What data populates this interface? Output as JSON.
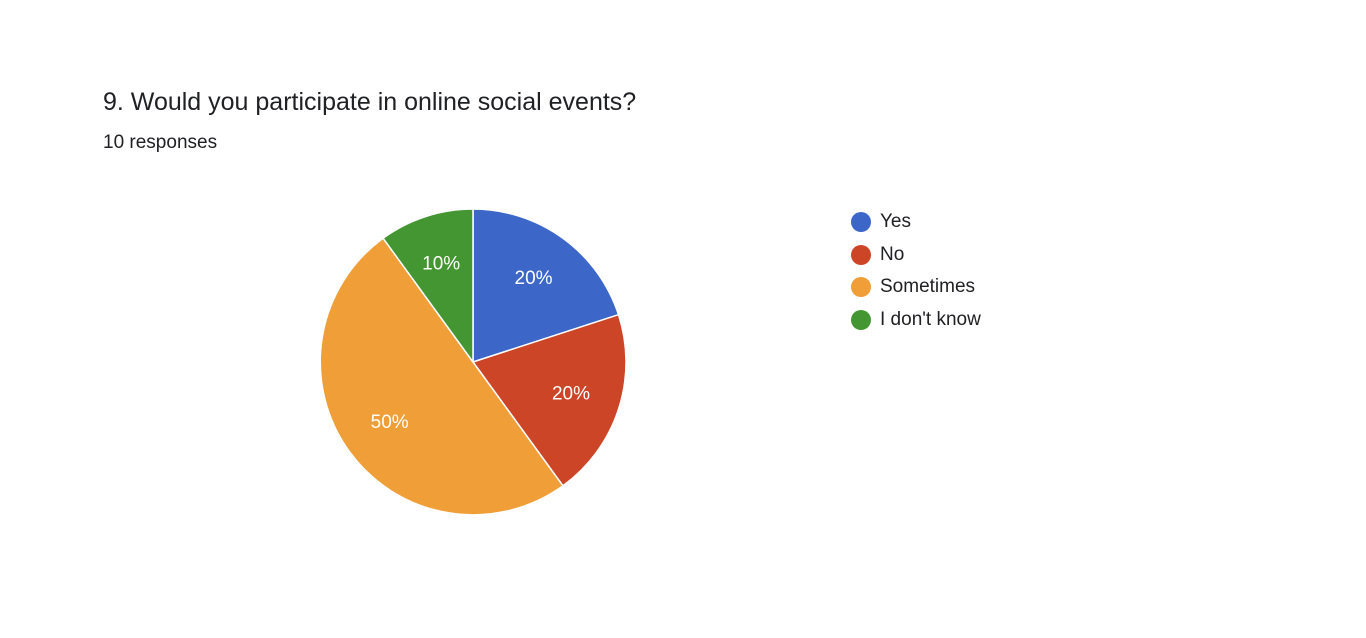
{
  "question": {
    "title": "9. Would you participate in online social events?",
    "response_count": "10 responses"
  },
  "chart_data": {
    "type": "pie",
    "title": "9. Would you participate in online social events?",
    "subtitle": "10 responses",
    "legend_position": "right",
    "start_angle_deg": 90,
    "direction": "clockwise",
    "slices": [
      {
        "name": "Yes",
        "value": 20,
        "label": "20%",
        "color": "#3c67c8"
      },
      {
        "name": "No",
        "value": 20,
        "label": "20%",
        "color": "#cc4527"
      },
      {
        "name": "Sometimes",
        "value": 50,
        "label": "50%",
        "color": "#f09e38"
      },
      {
        "name": "I don't know",
        "value": 10,
        "label": "10%",
        "color": "#449632"
      }
    ]
  }
}
